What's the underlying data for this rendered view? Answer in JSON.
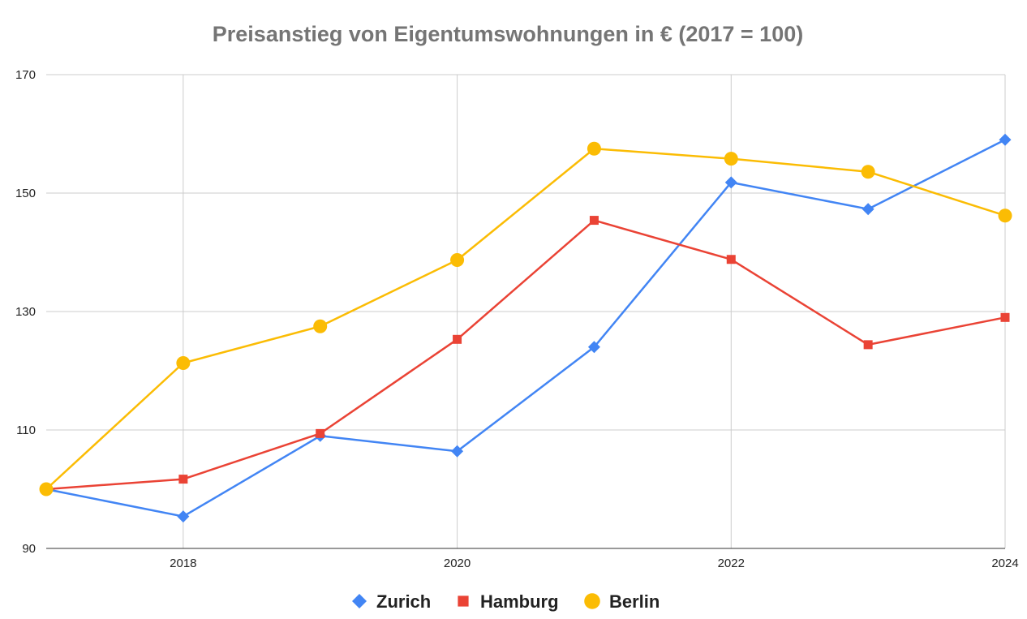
{
  "chart_data": {
    "type": "line",
    "title": "Preisanstieg von Eigentumswohnungen in € (2017 = 100)",
    "xlabel": "",
    "ylabel": "",
    "x": [
      2017,
      2018,
      2019,
      2020,
      2021,
      2022,
      2023,
      2024
    ],
    "x_tick_labels": [
      "2018",
      "2020",
      "2022",
      "2024"
    ],
    "x_tick_values": [
      2018,
      2020,
      2022,
      2024
    ],
    "y_tick_labels": [
      "90",
      "110",
      "130",
      "150",
      "170"
    ],
    "y_tick_values": [
      90,
      110,
      130,
      150,
      170
    ],
    "xlim": [
      2017,
      2024
    ],
    "ylim": [
      90,
      170
    ],
    "grid": true,
    "legend_position": "bottom",
    "series": [
      {
        "name": "Zurich",
        "color": "#4285F4",
        "marker": "diamond",
        "values": [
          100,
          95.4,
          109,
          106.4,
          124,
          151.8,
          147.3,
          159
        ]
      },
      {
        "name": "Hamburg",
        "color": "#EA4335",
        "marker": "square",
        "values": [
          100,
          101.7,
          109.4,
          125.3,
          145.4,
          138.8,
          124.4,
          129
        ]
      },
      {
        "name": "Berlin",
        "color": "#FBBC04",
        "marker": "circle",
        "values": [
          100,
          121.3,
          127.5,
          138.7,
          157.5,
          155.8,
          153.6,
          146.2
        ]
      }
    ]
  }
}
